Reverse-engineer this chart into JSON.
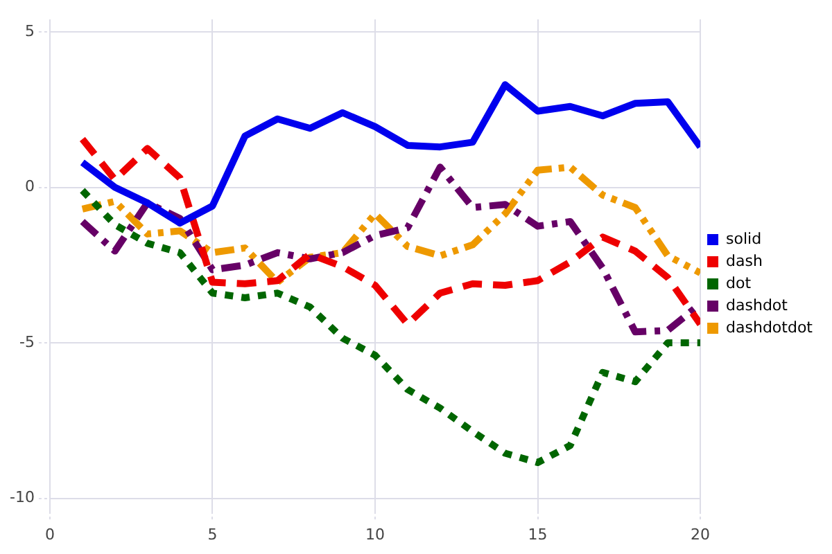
{
  "chart_data": {
    "type": "line",
    "x": [
      1,
      2,
      3,
      4,
      5,
      6,
      7,
      8,
      9,
      10,
      11,
      12,
      13,
      14,
      15,
      16,
      17,
      18,
      19,
      20
    ],
    "xlim": [
      0,
      20
    ],
    "xticks": [
      0,
      5,
      10,
      15,
      20
    ],
    "ylim": [
      -10.4,
      5.4
    ],
    "yticks": [
      -10,
      -5,
      0,
      5
    ],
    "grid": true,
    "legend": "right",
    "marker": "none",
    "series": [
      {
        "name": "solid",
        "color": "#0000ee",
        "line_style": "solid",
        "values": [
          0.8,
          0,
          -0.5,
          -1.15,
          -0.6,
          1.65,
          2.2,
          1.9,
          2.4,
          1.95,
          1.35,
          1.3,
          1.45,
          3.3,
          2.45,
          2.6,
          2.3,
          2.7,
          2.75,
          1.3
        ]
      },
      {
        "name": "dash",
        "color": "#ee0000",
        "line_style": "dashed",
        "values": [
          1.55,
          0.25,
          1.25,
          0.3,
          -3.05,
          -3.1,
          -3.0,
          -2.15,
          -2.55,
          -3.15,
          -4.4,
          -3.4,
          -3.1,
          -3.15,
          -3.0,
          -2.4,
          -1.6,
          -2.05,
          -2.9,
          -4.4
        ]
      },
      {
        "name": "dot",
        "color": "#006600",
        "line_style": "dotted",
        "values": [
          -0.1,
          -1.2,
          -1.8,
          -2.1,
          -3.4,
          -3.55,
          -3.4,
          -3.85,
          -4.85,
          -5.4,
          -6.5,
          -7.1,
          -7.85,
          -8.55,
          -8.85,
          -8.3,
          -5.95,
          -6.25,
          -5.0,
          -5.0
        ]
      },
      {
        "name": "dashdot",
        "color": "#660066",
        "line_style": "dashdot",
        "values": [
          -1.1,
          -2.05,
          -0.5,
          -1.0,
          -2.65,
          -2.5,
          -2.1,
          -2.3,
          -2.1,
          -1.55,
          -1.3,
          0.65,
          -0.65,
          -0.55,
          -1.25,
          -1.1,
          -2.6,
          -4.65,
          -4.6,
          -3.75
        ]
      },
      {
        "name": "dashdotdot",
        "color": "#ee9900",
        "line_style": "dashdotdot",
        "values": [
          -0.7,
          -0.45,
          -1.5,
          -1.4,
          -2.1,
          -1.95,
          -3.05,
          -2.25,
          -2.1,
          -0.85,
          -1.9,
          -2.2,
          -1.85,
          -0.85,
          0.55,
          0.65,
          -0.25,
          -0.65,
          -2.2,
          -2.75
        ]
      }
    ]
  }
}
